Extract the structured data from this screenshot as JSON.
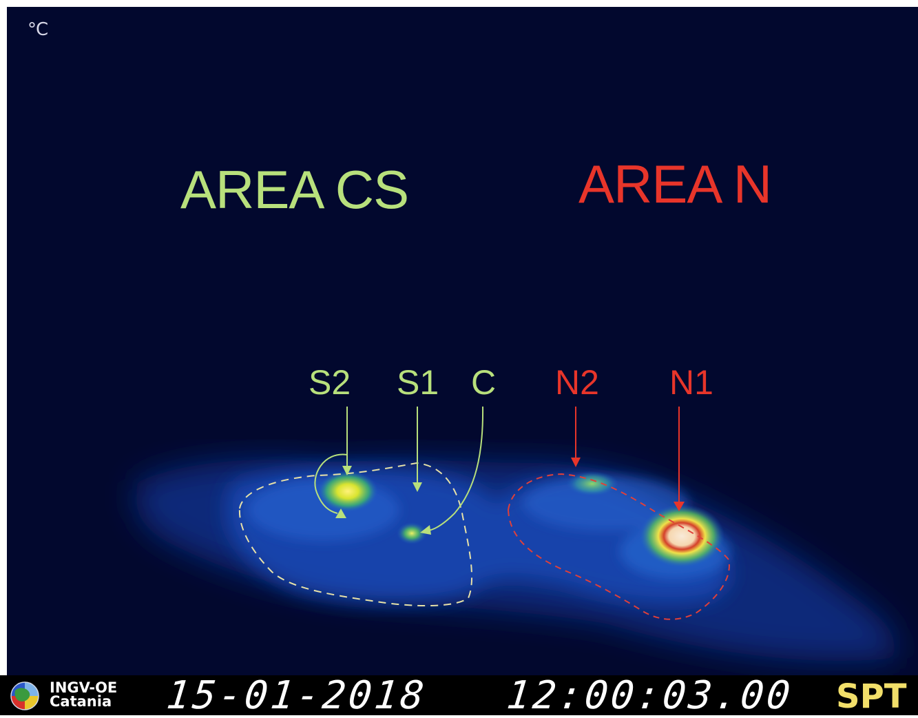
{
  "unit_label": "°C",
  "areas": [
    {
      "id": "cs",
      "label": "AREA CS",
      "color": "#b8e07c"
    },
    {
      "id": "n",
      "label": "AREA N",
      "color": "#e8352a"
    }
  ],
  "vents": [
    {
      "id": "s2",
      "label": "S2",
      "color": "#b8e07c"
    },
    {
      "id": "s1",
      "label": "S1",
      "color": "#b8e07c"
    },
    {
      "id": "c",
      "label": "C",
      "color": "#b8e07c"
    },
    {
      "id": "n2",
      "label": "N2",
      "color": "#e8352a"
    },
    {
      "id": "n1",
      "label": "N1",
      "color": "#e8352a"
    }
  ],
  "footer": {
    "org_line1": "INGV-OE",
    "org_line2": "Catania",
    "date": "15-01-2018",
    "time": "12:00:03.00",
    "station": "SPT"
  },
  "colors": {
    "background": "#02082e",
    "footer_bg": "#000000",
    "station_text": "#f2df6a"
  }
}
